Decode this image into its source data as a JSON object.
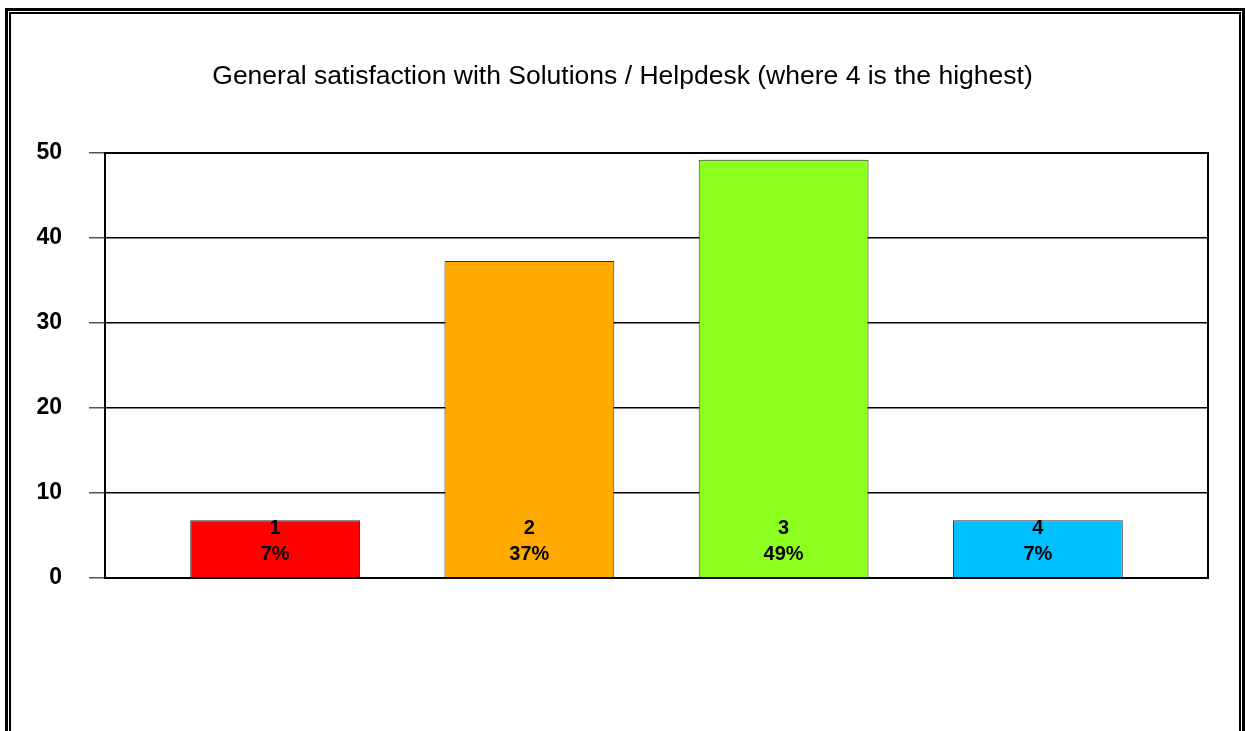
{
  "chart_data": {
    "type": "bar",
    "title": "General satisfaction with Solutions / Helpdesk (where 4 is the highest)",
    "categories": [
      "1",
      "2",
      "3",
      "4"
    ],
    "values": [
      6.8,
      37.3,
      49.2,
      6.8
    ],
    "colors": [
      "#ff0000",
      "#ffaa00",
      "#8cff1e",
      "#00bfff"
    ],
    "value_labels": [
      "7%",
      "37%",
      "49%",
      "7%"
    ],
    "ylim": [
      0,
      50
    ],
    "yticks": [
      0,
      10,
      20,
      30,
      40,
      50
    ],
    "grid": "y",
    "tick_labels": "y"
  }
}
